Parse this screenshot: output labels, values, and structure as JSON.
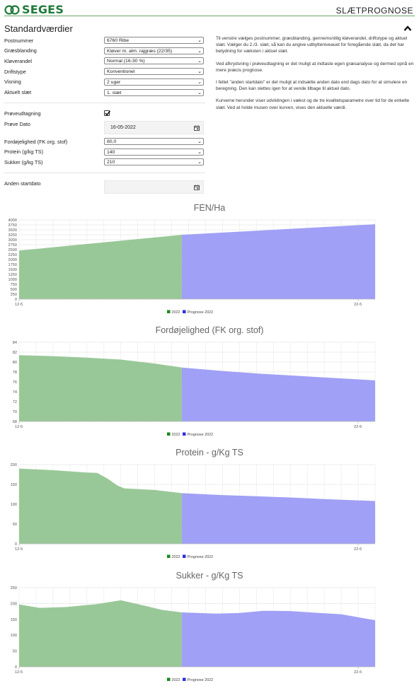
{
  "header": {
    "logo_text": "SEGES",
    "app_title": "SLÆTPROGNOSE"
  },
  "section": {
    "title": "Standardværdier"
  },
  "form": {
    "fields": [
      {
        "label": "Postnummer",
        "value": "6760 Ribe"
      },
      {
        "label": "Græsblanding",
        "value": "Kløver m. alm. rajgræs (22/35)"
      },
      {
        "label": "Kløverandel",
        "value": "Normal (16-30 %)"
      },
      {
        "label": "Driftstype",
        "value": "Konventionel"
      },
      {
        "label": "Visning",
        "value": "2 uger"
      },
      {
        "label": "Aktuelt slæt",
        "value": "1. slæt"
      }
    ],
    "sample": {
      "checkbox_label": "Prøveudtagning",
      "checked": true,
      "date_label": "Prøve Dato",
      "date_value": "16-05-2022",
      "fields": [
        {
          "label": "Fordøjelighed (FK org. stof)",
          "value": "80,0"
        },
        {
          "label": "Protein (g/kg TS)",
          "value": "140"
        },
        {
          "label": "Sukker (g/kg TS)",
          "value": "210"
        }
      ]
    },
    "start_date": {
      "label": "Anden startdato",
      "value": ""
    }
  },
  "info": {
    "paragraphs": [
      "Til venstre vælges postnummer, græsblanding, gennemsnitlig kløverandel, driftstype og aktuel slæt. Vælger du 2./3. slæt, så kan du angive udbytteniveauet for foregående slæt, da det har betydning for væksten i aktuel slæt.",
      "Ved afkrydsning i prøveudtagning er det muligt at indtaste egen græsanalyse og dermed opnå en mere præcis prognose.",
      "I feltet \"anden startdato\" er det muligt at indsætte anden dato end dags dato for at simulere en beregning. Den kan slettes igen for at vende tilbage til aktuel dato.",
      "Kurverne herunder viser udviklingen i vækst og de tre kvalitetsparametre over tid for de enkelte slæt. Ved at holde musen over kurven, vises den aktuelle værdi."
    ]
  },
  "colors": {
    "brand_green": "#1f7a3a",
    "series_2022": "#93c592",
    "series_prognose": "#9b9bf5",
    "legend_2022": "#1b8a1b",
    "legend_prognose": "#2f2fe0"
  },
  "chart_data": [
    {
      "type": "area",
      "title": "FEN/Ha",
      "x": [
        0,
        10.5
      ],
      "x_ticks": [
        {
          "x": 0,
          "label": "12-5"
        },
        {
          "x": 10,
          "label": "22-5"
        }
      ],
      "ylim": [
        0,
        4000
      ],
      "y_ticks": [
        0,
        250,
        500,
        750,
        1000,
        1250,
        1500,
        1750,
        2000,
        2250,
        2500,
        2750,
        3000,
        3250,
        3500,
        3750,
        4000
      ],
      "series": [
        {
          "name": "2022",
          "points": [
            [
              0,
              2450
            ],
            [
              4.8,
              3250
            ]
          ]
        },
        {
          "name": "Prognose 2022",
          "points": [
            [
              4.8,
              3250
            ],
            [
              10.5,
              3780
            ]
          ]
        }
      ]
    },
    {
      "type": "area",
      "title": "Fordøjelighed (FK org. stof)",
      "x": [
        0,
        10.5
      ],
      "x_ticks": [
        {
          "x": 0,
          "label": "12-5"
        },
        {
          "x": 10,
          "label": "22-5"
        }
      ],
      "ylim": [
        68,
        84
      ],
      "y_ticks": [
        68,
        70,
        72,
        74,
        76,
        78,
        80,
        82,
        84
      ],
      "series": [
        {
          "name": "2022",
          "points": [
            [
              0,
              81.4
            ],
            [
              1,
              81.2
            ],
            [
              2,
              80.9
            ],
            [
              3,
              80.5
            ],
            [
              4,
              79.7
            ],
            [
              4.8,
              78.9
            ]
          ]
        },
        {
          "name": "Prognose 2022",
          "points": [
            [
              4.8,
              78.9
            ],
            [
              6,
              78.2
            ],
            [
              7,
              77.7
            ],
            [
              8,
              77.3
            ],
            [
              9,
              76.9
            ],
            [
              10.5,
              76.3
            ]
          ]
        }
      ]
    },
    {
      "type": "area",
      "title": "Protein - g/Kg TS",
      "x": [
        0,
        10.5
      ],
      "x_ticks": [
        {
          "x": 0,
          "label": "12-5"
        },
        {
          "x": 10,
          "label": "22-5"
        }
      ],
      "ylim": [
        0,
        200
      ],
      "y_ticks": [
        0,
        50,
        100,
        150,
        200
      ],
      "series": [
        {
          "name": "2022",
          "points": [
            [
              0,
              190
            ],
            [
              1,
              186
            ],
            [
              2,
              180
            ],
            [
              2.3,
              179
            ],
            [
              2.6,
              165
            ],
            [
              2.9,
              147
            ],
            [
              3.1,
              140
            ],
            [
              4,
              136
            ],
            [
              4.8,
              128
            ]
          ]
        },
        {
          "name": "Prognose 2022",
          "points": [
            [
              4.8,
              128
            ],
            [
              6,
              123
            ],
            [
              7,
              120
            ],
            [
              8,
              117
            ],
            [
              9,
              113
            ],
            [
              10.5,
              108
            ]
          ]
        }
      ]
    },
    {
      "type": "area",
      "title": "Sukker - g/Kg TS",
      "x": [
        0,
        10.5
      ],
      "x_ticks": [
        {
          "x": 0,
          "label": "12-5"
        },
        {
          "x": 10,
          "label": "22-5"
        }
      ],
      "ylim": [
        0,
        250
      ],
      "y_ticks": [
        0,
        50,
        100,
        150,
        200,
        250
      ],
      "series": [
        {
          "name": "2022",
          "points": [
            [
              0,
              197
            ],
            [
              0.6,
              186
            ],
            [
              1.4,
              189
            ],
            [
              2.3,
              198
            ],
            [
              3,
              210
            ],
            [
              3.7,
              193
            ],
            [
              4.2,
              180
            ],
            [
              4.8,
              172
            ]
          ]
        },
        {
          "name": "Prognose 2022",
          "points": [
            [
              4.8,
              172
            ],
            [
              5.8,
              168
            ],
            [
              6.5,
              170
            ],
            [
              7.2,
              177
            ],
            [
              8,
              176
            ],
            [
              8.7,
              171
            ],
            [
              9.5,
              166
            ],
            [
              10.5,
              147
            ]
          ]
        }
      ]
    }
  ]
}
